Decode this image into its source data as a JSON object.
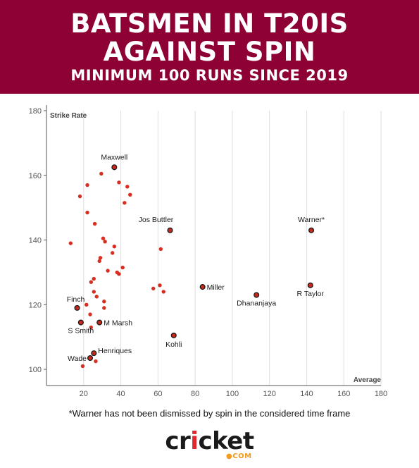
{
  "header": {
    "title_line1": "BATSMEN IN T20IS",
    "title_line2": "AGAINST SPIN",
    "subtitle": "MINIMUM 100 RUNS SINCE 2019"
  },
  "footnote": "*Warner has not been dismissed by spin in the considered time frame",
  "logo": {
    "word_pre": "cr",
    "word_accent": "i",
    "word_post": "cket",
    "suffix": "COM"
  },
  "colors": {
    "banner": "#8e0134",
    "point": "#d62f22",
    "labeled_point": "#c7281c",
    "grid": "#dedede",
    "axis": "#555555"
  },
  "chart_data": {
    "type": "scatter",
    "xlabel": "Average",
    "ylabel": "Strike Rate",
    "xlim": [
      0,
      180
    ],
    "ylim": [
      95,
      180
    ],
    "xticks": [
      20,
      40,
      60,
      80,
      100,
      120,
      140,
      160,
      180
    ],
    "yticks": [
      100,
      120,
      140,
      160,
      180
    ],
    "grid": "vertical",
    "points": [
      {
        "x": 36.5,
        "y": 162.5,
        "label": "Maxwell",
        "highlight": true
      },
      {
        "x": 66.5,
        "y": 143.0,
        "label": "Jos Buttler",
        "highlight": true
      },
      {
        "x": 142.5,
        "y": 143.0,
        "label": "Warner*",
        "highlight": true
      },
      {
        "x": 84.0,
        "y": 125.5,
        "label": "Miller",
        "highlight": true
      },
      {
        "x": 113.0,
        "y": 123.0,
        "label": "Dhananjaya",
        "highlight": true
      },
      {
        "x": 142.0,
        "y": 126.0,
        "label": "R Taylor",
        "highlight": true
      },
      {
        "x": 16.5,
        "y": 119.0,
        "label": "Finch",
        "highlight": true
      },
      {
        "x": 18.5,
        "y": 114.5,
        "label": "S Smith",
        "highlight": true
      },
      {
        "x": 28.5,
        "y": 114.5,
        "label": "M Marsh",
        "highlight": true
      },
      {
        "x": 68.5,
        "y": 110.5,
        "label": "Kohli",
        "highlight": true
      },
      {
        "x": 25.5,
        "y": 105.0,
        "label": "Henriques",
        "highlight": true
      },
      {
        "x": 23.5,
        "y": 103.5,
        "label": "Wade",
        "highlight": true
      },
      {
        "x": 29.5,
        "y": 160.5
      },
      {
        "x": 22.0,
        "y": 157.0
      },
      {
        "x": 39.0,
        "y": 157.8
      },
      {
        "x": 43.5,
        "y": 156.5
      },
      {
        "x": 45.0,
        "y": 154.0
      },
      {
        "x": 18.0,
        "y": 153.5
      },
      {
        "x": 42.0,
        "y": 151.5
      },
      {
        "x": 22.0,
        "y": 148.5
      },
      {
        "x": 26.0,
        "y": 145.0
      },
      {
        "x": 30.5,
        "y": 140.5
      },
      {
        "x": 31.5,
        "y": 139.5
      },
      {
        "x": 13.0,
        "y": 139.0
      },
      {
        "x": 36.5,
        "y": 138.0
      },
      {
        "x": 61.5,
        "y": 137.2
      },
      {
        "x": 35.5,
        "y": 136.0
      },
      {
        "x": 29.0,
        "y": 134.5
      },
      {
        "x": 28.5,
        "y": 133.5
      },
      {
        "x": 41.0,
        "y": 131.5
      },
      {
        "x": 33.0,
        "y": 130.5
      },
      {
        "x": 38.0,
        "y": 130.0
      },
      {
        "x": 39.0,
        "y": 129.5
      },
      {
        "x": 25.5,
        "y": 128.0
      },
      {
        "x": 24.0,
        "y": 127.0
      },
      {
        "x": 61.0,
        "y": 126.0
      },
      {
        "x": 57.5,
        "y": 125.0
      },
      {
        "x": 63.0,
        "y": 124.0
      },
      {
        "x": 25.5,
        "y": 124.0
      },
      {
        "x": 27.0,
        "y": 122.5
      },
      {
        "x": 31.0,
        "y": 121.0
      },
      {
        "x": 21.5,
        "y": 120.0
      },
      {
        "x": 31.0,
        "y": 119.0
      },
      {
        "x": 23.5,
        "y": 117.0
      },
      {
        "x": 24.0,
        "y": 113.0
      },
      {
        "x": 26.5,
        "y": 102.5
      },
      {
        "x": 19.5,
        "y": 101.0
      }
    ]
  }
}
